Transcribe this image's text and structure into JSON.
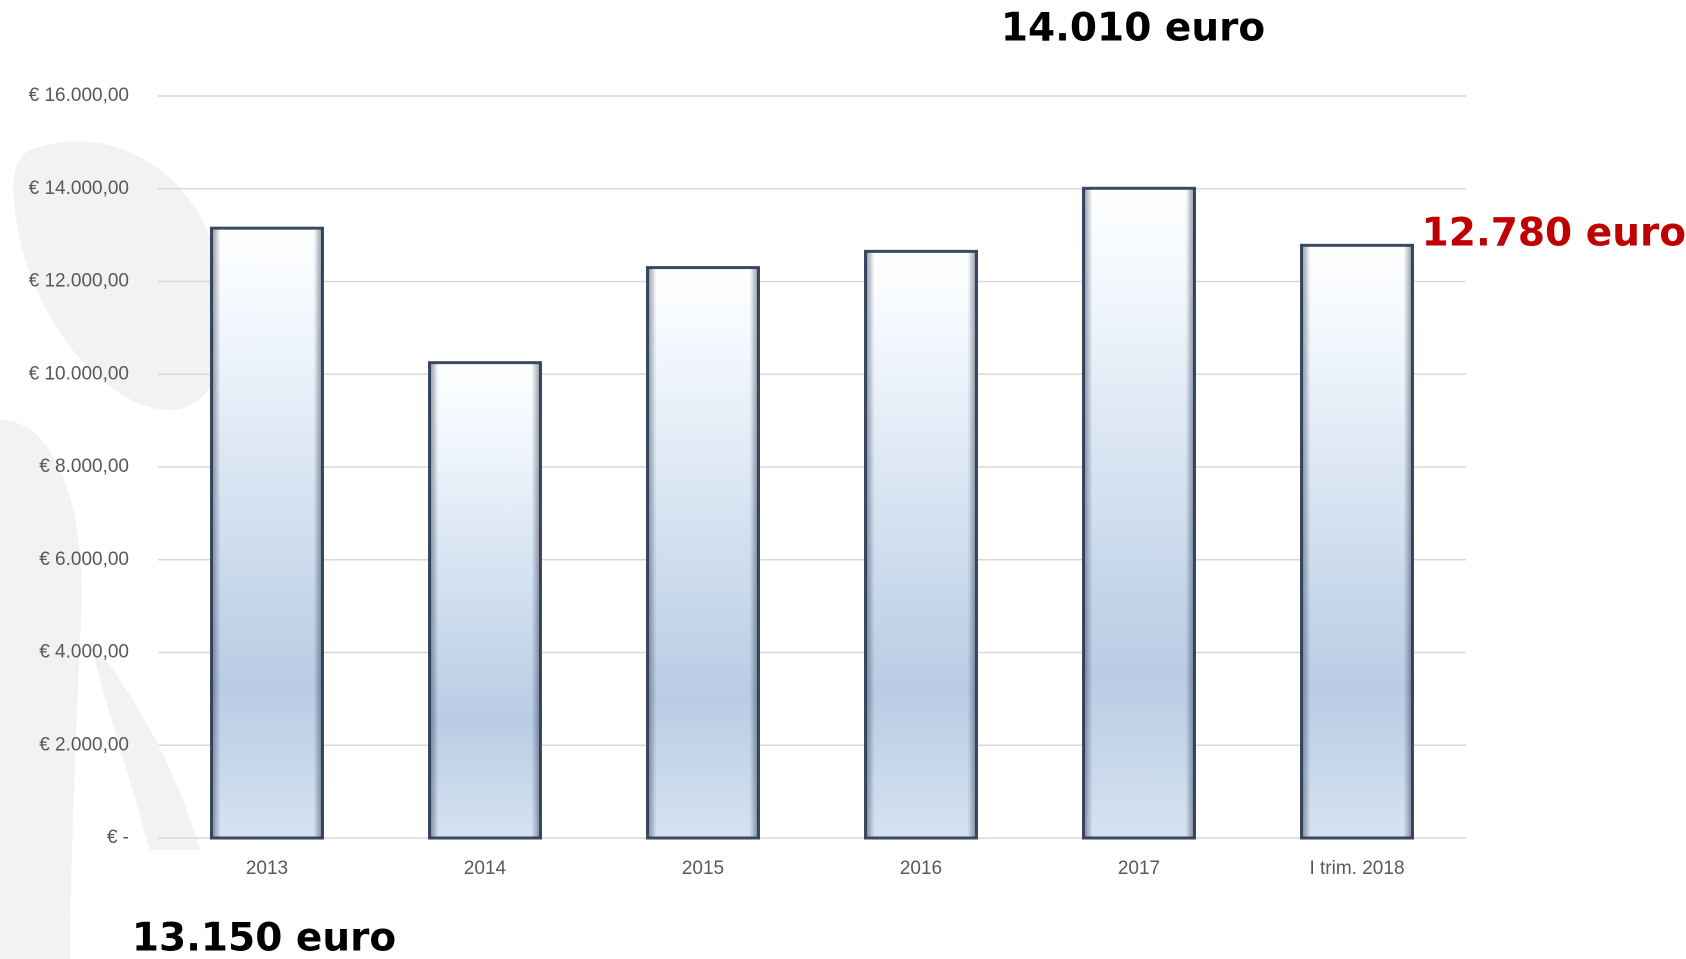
{
  "chart_data": {
    "type": "bar",
    "categories": [
      "2013",
      "2014",
      "2015",
      "2016",
      "2017",
      "I trim. 2018"
    ],
    "values": [
      13150,
      10250,
      12300,
      12650,
      14010,
      12780
    ],
    "value_labels": [
      "13.150 euro",
      null,
      null,
      null,
      "14.010 euro",
      "12.780 euro"
    ],
    "value_label_colors": [
      "#000000",
      null,
      null,
      null,
      "#000000",
      "#c00000"
    ],
    "color": "#b8cce4",
    "ylim": [
      0,
      16000
    ],
    "yticks": [
      {
        "value": 0,
        "label": "€ -"
      },
      {
        "value": 2000,
        "label": "€ 2.000,00"
      },
      {
        "value": 4000,
        "label": "€ 4.000,00"
      },
      {
        "value": 6000,
        "label": "€ 6.000,00"
      },
      {
        "value": 8000,
        "label": "€ 8.000,00"
      },
      {
        "value": 10000,
        "label": "€ 10.000,00"
      },
      {
        "value": 12000,
        "label": "€ 12.000,00"
      },
      {
        "value": 14000,
        "label": "€ 14.000,00"
      },
      {
        "value": 16000,
        "label": "€ 16.000,00"
      }
    ],
    "grid": true
  }
}
